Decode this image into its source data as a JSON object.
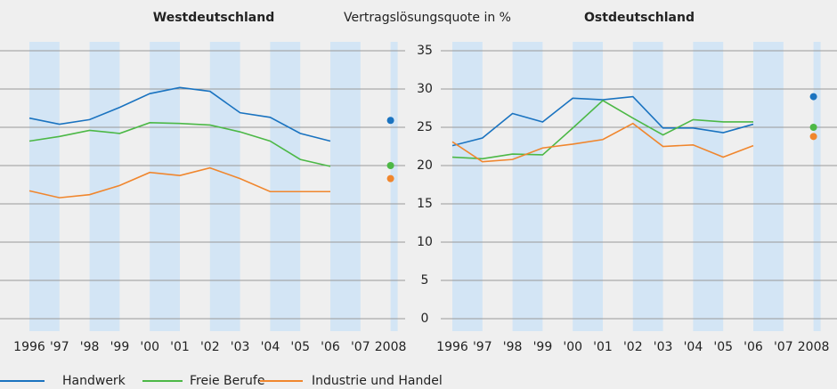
{
  "chart_data": [
    {
      "type": "line",
      "title": "Westdeutschland",
      "y_label": "Vertragslösungsquote in %",
      "categories": [
        "1996",
        "'97",
        "'98",
        "'99",
        "'00",
        "'01",
        "'02",
        "'03",
        "'04",
        "'05",
        "'06",
        "'07",
        "2008"
      ],
      "ylim": [
        0,
        35
      ],
      "yticks": [
        0,
        5,
        10,
        15,
        20,
        25,
        30,
        35
      ],
      "grid": true,
      "series": [
        {
          "name": "Handwerk",
          "color": "#1a73c0",
          "values": [
            26.2,
            25.4,
            26.0,
            27.6,
            29.4,
            30.2,
            29.7,
            26.9,
            26.3,
            24.2,
            23.2,
            null,
            25.9
          ]
        },
        {
          "name": "Freie Berufe",
          "color": "#4cb846",
          "values": [
            23.2,
            23.8,
            24.6,
            24.2,
            25.6,
            25.5,
            25.3,
            24.4,
            23.2,
            20.8,
            19.9,
            null,
            20.0
          ]
        },
        {
          "name": "Industrie und Handel",
          "color": "#f0862d",
          "values": [
            16.7,
            15.8,
            16.2,
            17.4,
            19.1,
            18.7,
            19.7,
            18.3,
            16.6,
            16.6,
            16.6,
            null,
            18.3
          ]
        }
      ]
    },
    {
      "type": "line",
      "title": "Ostdeutschland",
      "categories": [
        "1996",
        "'97",
        "'98",
        "'99",
        "'00",
        "'01",
        "'02",
        "'03",
        "'04",
        "'05",
        "'06",
        "'07",
        "2008"
      ],
      "ylim": [
        0,
        35
      ],
      "yticks": [
        0,
        5,
        10,
        15,
        20,
        25,
        30,
        35
      ],
      "grid": true,
      "series": [
        {
          "name": "Handwerk",
          "color": "#1a73c0",
          "values": [
            22.6,
            23.6,
            26.8,
            25.7,
            28.8,
            28.6,
            29.0,
            24.9,
            24.9,
            24.3,
            25.4,
            null,
            29.0
          ]
        },
        {
          "name": "Freie Berufe",
          "color": "#4cb846",
          "values": [
            21.1,
            20.9,
            21.5,
            21.4,
            24.9,
            28.5,
            26.2,
            24.0,
            26.0,
            25.7,
            25.7,
            null,
            25.0
          ]
        },
        {
          "name": "Industrie und Handel",
          "color": "#f0862d",
          "values": [
            23.1,
            20.5,
            20.8,
            22.3,
            22.8,
            23.4,
            25.5,
            22.5,
            22.7,
            21.1,
            22.6,
            null,
            23.8
          ]
        }
      ]
    }
  ]
}
